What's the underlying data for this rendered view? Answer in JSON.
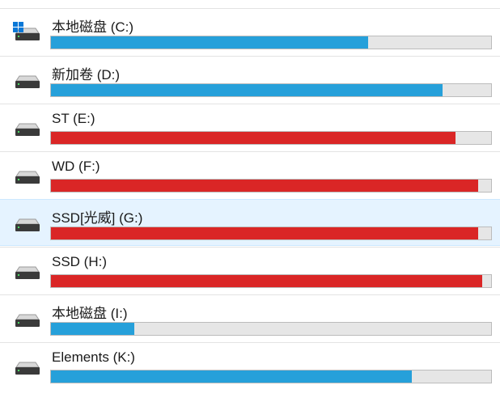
{
  "drives": [
    {
      "label": "本地磁盘 (C:)",
      "used": 72,
      "color": "#26a0da",
      "system": true
    },
    {
      "label": "新加卷 (D:)",
      "used": 89,
      "color": "#26a0da"
    },
    {
      "label": "ST (E:)",
      "used": 92,
      "color": "#da2626"
    },
    {
      "label": "WD (F:)",
      "used": 97,
      "color": "#da2626"
    },
    {
      "label": "SSD[光威] (G:)",
      "used": 97,
      "color": "#da2626",
      "selected": true
    },
    {
      "label": "SSD (H:)",
      "used": 98,
      "color": "#da2626"
    },
    {
      "label": "本地磁盘 (I:)",
      "used": 19,
      "color": "#26a0da"
    },
    {
      "label": "Elements (K:)",
      "used": 82,
      "color": "#26a0da"
    }
  ]
}
